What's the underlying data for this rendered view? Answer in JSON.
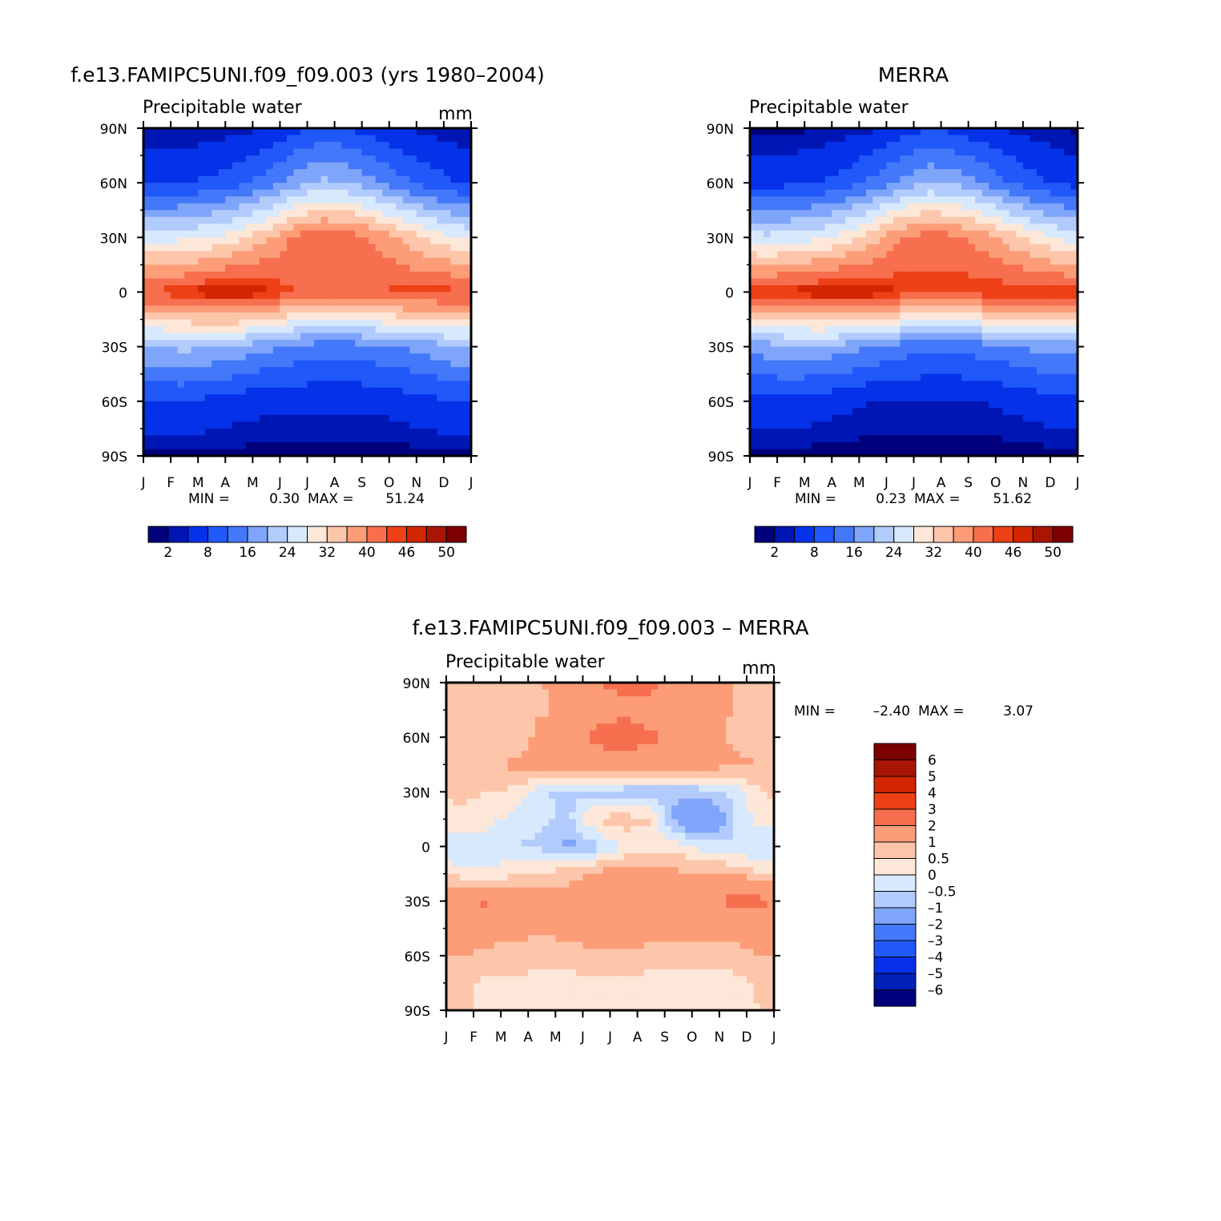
{
  "colors": {
    "abs_palette": [
      "#00007c",
      "#0016b4",
      "#0532e8",
      "#2158fa",
      "#4478fa",
      "#7ea5fa",
      "#b2cbfd",
      "#d8e9fd",
      "#fde7d8",
      "#fdc6aa",
      "#fc9d78",
      "#f76f4e",
      "#ee4016",
      "#d22600",
      "#a91503",
      "#7c0000"
    ],
    "diff_palette": [
      "#00007c",
      "#0020b8",
      "#0530e8",
      "#2158fa",
      "#4478fa",
      "#7ea5fa",
      "#b2cbfd",
      "#d8e9fd",
      "#fde7d8",
      "#fdc6aa",
      "#fc9d78",
      "#f76f4e",
      "#ee4016",
      "#d22600",
      "#a91503",
      "#7c0000"
    ]
  },
  "chart_data": [
    {
      "type": "heatmap",
      "title": "f.e13.FAMIPC5UNI.f09_f09.003 (yrs 1980–2004)",
      "subtitle": "Precipitable water",
      "units": "mm",
      "x_ticks": [
        "J",
        "F",
        "M",
        "A",
        "M",
        "J",
        "J",
        "A",
        "S",
        "O",
        "N",
        "D",
        "J"
      ],
      "y_ticks": [
        "90N",
        "60N",
        "30N",
        "0",
        "30S",
        "60S",
        "90S"
      ],
      "stats": {
        "min_label": "MIN =",
        "min": "0.30",
        "max_label": "MAX =",
        "max": "51.24"
      },
      "colorbar_labels": [
        "2",
        "8",
        "16",
        "24",
        "32",
        "40",
        "46",
        "50"
      ],
      "levels": [
        2,
        4,
        8,
        12,
        16,
        20,
        24,
        28,
        32,
        36,
        40,
        44,
        46,
        48,
        50
      ],
      "months": [
        "J",
        "F",
        "M",
        "A",
        "M",
        "J",
        "J",
        "A",
        "S",
        "O",
        "N",
        "D"
      ],
      "latitudes": [
        -90,
        -60,
        -30,
        0,
        30,
        60,
        90
      ],
      "z_rows": [
        [
          1.5,
          1.5,
          1.5,
          1.2,
          1.0,
          0.8,
          0.7,
          0.7,
          0.8,
          1.0,
          1.3,
          1.5
        ],
        [
          8,
          8,
          7,
          6,
          5,
          5,
          5,
          5,
          5,
          6,
          7,
          8
        ],
        [
          20,
          21,
          20,
          19,
          17,
          15,
          14,
          14,
          15,
          16,
          18,
          20
        ],
        [
          45,
          46,
          48,
          49,
          47,
          44,
          42,
          43,
          44,
          45,
          45,
          45
        ],
        [
          26,
          27,
          28,
          31,
          35,
          41,
          43,
          42,
          39,
          35,
          31,
          28
        ],
        [
          7,
          8,
          9,
          11,
          14,
          18,
          21,
          20,
          17,
          13,
          10,
          8
        ],
        [
          2,
          2,
          2,
          3,
          4,
          7,
          9,
          8,
          6,
          4,
          3,
          2
        ]
      ]
    },
    {
      "type": "heatmap",
      "title": "MERRA",
      "subtitle": "Precipitable water",
      "units": "",
      "x_ticks": [
        "J",
        "F",
        "M",
        "A",
        "M",
        "J",
        "J",
        "A",
        "S",
        "O",
        "N",
        "D",
        "J"
      ],
      "y_ticks": [
        "90N",
        "60N",
        "30N",
        "0",
        "30S",
        "60S",
        "90S"
      ],
      "stats": {
        "min_label": "MIN =",
        "min": "0.23",
        "max_label": "MAX =",
        "max": "51.62"
      },
      "colorbar_labels": [
        "2",
        "8",
        "16",
        "24",
        "32",
        "40",
        "46",
        "50"
      ],
      "levels": [
        2,
        4,
        8,
        12,
        16,
        20,
        24,
        28,
        32,
        36,
        40,
        44,
        46,
        48,
        50
      ],
      "months": [
        "J",
        "F",
        "M",
        "A",
        "M",
        "J",
        "J",
        "A",
        "S",
        "O",
        "N",
        "D"
      ],
      "latitudes": [
        -90,
        -60,
        -30,
        0,
        30,
        60,
        90
      ],
      "z_rows": [
        [
          1.0,
          1.0,
          1.0,
          0.9,
          0.8,
          0.6,
          0.5,
          0.5,
          0.6,
          0.8,
          1.0,
          1.0
        ],
        [
          7,
          7,
          6,
          5,
          4,
          4,
          4,
          4,
          4,
          5,
          6,
          7
        ],
        [
          18,
          19,
          19,
          18,
          16,
          14,
          13,
          13,
          14,
          15,
          17,
          18
        ],
        [
          46,
          47,
          48,
          49,
          48,
          46,
          45,
          46,
          46,
          46,
          46,
          46
        ],
        [
          25,
          26,
          27,
          30,
          34,
          40,
          42,
          41,
          38,
          34,
          30,
          27
        ],
        [
          6,
          7,
          8,
          10,
          13,
          17,
          20,
          19,
          16,
          12,
          9,
          7
        ],
        [
          1.5,
          1.5,
          1.8,
          2.5,
          3.5,
          6,
          8,
          7,
          5,
          3.5,
          2.5,
          1.8
        ]
      ]
    },
    {
      "type": "heatmap",
      "title": "f.e13.FAMIPC5UNI.f09_f09.003 – MERRA",
      "subtitle": "Precipitable water",
      "units": "mm",
      "x_ticks": [
        "J",
        "F",
        "M",
        "A",
        "M",
        "J",
        "J",
        "A",
        "S",
        "O",
        "N",
        "D",
        "J"
      ],
      "y_ticks": [
        "90N",
        "60N",
        "30N",
        "0",
        "30S",
        "60S",
        "90S"
      ],
      "stats": {
        "min_label": "MIN =",
        "min": "–2.40",
        "max_label": "MAX =",
        "max": "3.07"
      },
      "colorbar_labels": [
        "6",
        "5",
        "4",
        "3",
        "2",
        "1",
        "0.5",
        "0",
        "–0.5",
        "–1",
        "–2",
        "–3",
        "–4",
        "–5",
        "–6"
      ],
      "levels": [
        -6,
        -5,
        -4,
        -3,
        -2,
        -1,
        -0.5,
        0,
        0.5,
        1,
        2,
        3,
        4,
        5,
        6
      ],
      "months": [
        "J",
        "F",
        "M",
        "A",
        "M",
        "J",
        "J",
        "A",
        "S",
        "O",
        "N",
        "D"
      ],
      "latitudes": [
        -90,
        -75,
        -60,
        -45,
        -30,
        -15,
        0,
        15,
        30,
        45,
        60,
        75,
        90
      ],
      "z_rows": [
        [
          0.5,
          0.5,
          0.4,
          0.4,
          0.3,
          0.3,
          0.3,
          0.3,
          0.3,
          0.3,
          0.4,
          0.5
        ],
        [
          0.6,
          0.4,
          0.4,
          0.3,
          0.3,
          0.3,
          0.3,
          0.3,
          0.3,
          0.3,
          0.3,
          0.6
        ],
        [
          1.0,
          0.9,
          0.8,
          0.7,
          0.8,
          0.9,
          0.9,
          0.8,
          0.8,
          0.8,
          0.8,
          1.0
        ],
        [
          1.3,
          1.2,
          1.2,
          1.1,
          1.2,
          1.3,
          1.3,
          1.3,
          1.2,
          1.3,
          1.2,
          1.3
        ],
        [
          1.6,
          2.2,
          1.4,
          1.3,
          1.3,
          1.4,
          1.5,
          1.4,
          1.5,
          1.7,
          2.3,
          2.2
        ],
        [
          0.3,
          0.1,
          0.4,
          0.6,
          0.8,
          1.2,
          1.3,
          1.3,
          1.1,
          1.0,
          1.0,
          0.6
        ],
        [
          -0.6,
          -0.3,
          -0.5,
          -0.6,
          -1.2,
          -0.7,
          0.1,
          0.3,
          0.2,
          -0.2,
          -0.4,
          -0.6
        ],
        [
          0.4,
          0.2,
          -0.2,
          -0.4,
          -0.6,
          0.6,
          0.8,
          0.5,
          -1.4,
          -2.2,
          -0.6,
          0.3
        ],
        [
          0.6,
          0.5,
          0.4,
          -0.4,
          -0.7,
          -0.7,
          -0.8,
          -0.9,
          -0.9,
          -0.7,
          -0.3,
          0.5
        ],
        [
          1.0,
          1.0,
          1.1,
          1.3,
          1.4,
          1.6,
          1.7,
          1.6,
          1.5,
          1.3,
          1.1,
          1.0
        ],
        [
          0.8,
          0.6,
          0.5,
          1.3,
          1.7,
          2.2,
          2.4,
          2.1,
          1.9,
          1.2,
          0.9,
          0.8
        ],
        [
          0.9,
          0.8,
          0.8,
          0.9,
          1.2,
          1.6,
          1.8,
          1.7,
          1.5,
          1.2,
          1.0,
          0.9
        ],
        [
          1.0,
          1.0,
          0.9,
          1.0,
          1.2,
          1.9,
          2.3,
          2.2,
          1.8,
          1.3,
          1.0,
          1.0
        ]
      ]
    }
  ]
}
